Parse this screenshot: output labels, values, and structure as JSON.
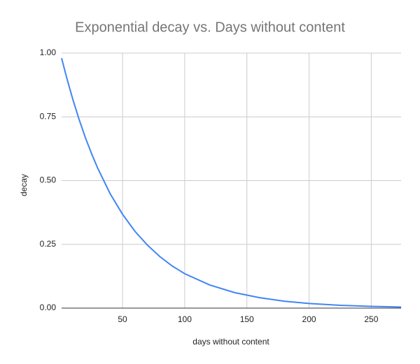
{
  "chart_data": {
    "type": "line",
    "title": "Exponential decay vs. Days without content",
    "x_label": "days without content",
    "y_label": "decay",
    "x": [
      1,
      5,
      10,
      15,
      20,
      25,
      30,
      40,
      50,
      60,
      70,
      80,
      90,
      100,
      120,
      140,
      160,
      180,
      200,
      225,
      250,
      274
    ],
    "series": [
      {
        "name": "decay",
        "color": "#4285f4",
        "values": [
          0.98,
          0.905,
          0.819,
          0.741,
          0.67,
          0.607,
          0.549,
          0.449,
          0.368,
          0.301,
          0.247,
          0.202,
          0.165,
          0.135,
          0.091,
          0.061,
          0.041,
          0.027,
          0.018,
          0.011,
          0.007,
          0.004
        ]
      }
    ],
    "xlim": [
      1,
      274
    ],
    "xticks": [
      50,
      100,
      150,
      200,
      250
    ],
    "ylim": [
      0,
      1
    ],
    "yticks": [
      {
        "value": 0,
        "label": "0.00"
      },
      {
        "value": 0.25,
        "label": "0.25"
      },
      {
        "value": 0.5,
        "label": "0.50"
      },
      {
        "value": 0.75,
        "label": "0.75"
      },
      {
        "value": 1,
        "label": "1.00"
      }
    ],
    "grid": true
  }
}
